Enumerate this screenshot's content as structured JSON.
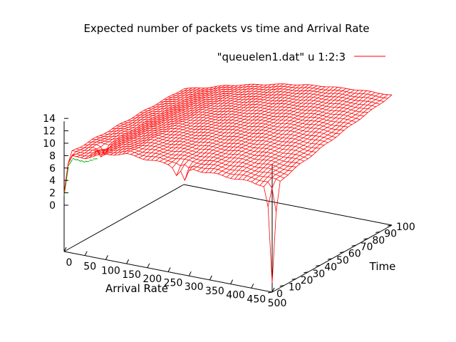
{
  "chart_data": {
    "type": "surface3d",
    "title": "Expected number of packets vs time and Arrival Rate",
    "legend": {
      "label": "\"queuelen1.dat\" u 1:2:3",
      "position": "top-right",
      "color": "#ff0000"
    },
    "x_axis": {
      "label": "Arrival Rate",
      "range": [
        0,
        500
      ],
      "ticks": [
        "0",
        "50",
        "100",
        "150",
        "200",
        "250",
        "300",
        "350",
        "400",
        "450",
        "500"
      ]
    },
    "y_axis": {
      "label": "Time",
      "range": [
        0,
        100
      ],
      "ticks": [
        "0",
        "10",
        "20",
        "30",
        "40",
        "50",
        "60",
        "70",
        "80",
        "90",
        "100"
      ]
    },
    "z_axis": {
      "label": "",
      "range": [
        0,
        14
      ],
      "ticks": [
        "0",
        "2",
        "4",
        "6",
        "8",
        "10",
        "12",
        "14"
      ]
    },
    "surface": {
      "description_values": "Expected queue length rises from ~8 at low arrival rate to ~14 at high arrival rate; near-flat plateau in time; sharp dips near Time=0",
      "x": [
        0,
        50,
        100,
        150,
        200,
        250,
        300,
        350,
        400,
        450,
        500
      ],
      "y": [
        0,
        10,
        20,
        30,
        40,
        50,
        60,
        70,
        80,
        90,
        100
      ],
      "z_at_time_max": [
        8.0,
        8.8,
        9.8,
        10.6,
        11.3,
        12.0,
        12.5,
        12.9,
        13.2,
        13.4,
        13.5
      ],
      "z_at_time_min": [
        8.0,
        8.3,
        9.5,
        10.2,
        10.0,
        9.9,
        9.8,
        9.8,
        9.7,
        9.6,
        9.3
      ],
      "dips": [
        {
          "x": 0,
          "y": 0,
          "z": 2
        },
        {
          "x": 50,
          "y": 15,
          "z": 6.5
        },
        {
          "x": 270,
          "y": 0,
          "z": 8.3
        },
        {
          "x": 290,
          "y": 0,
          "z": 7.8
        },
        {
          "x": 500,
          "y": 0,
          "z": -6
        }
      ]
    },
    "colors": {
      "top_surface": "#ff0000",
      "bottom_surface": "#00b000",
      "axes": "#000000"
    },
    "grid": false
  }
}
